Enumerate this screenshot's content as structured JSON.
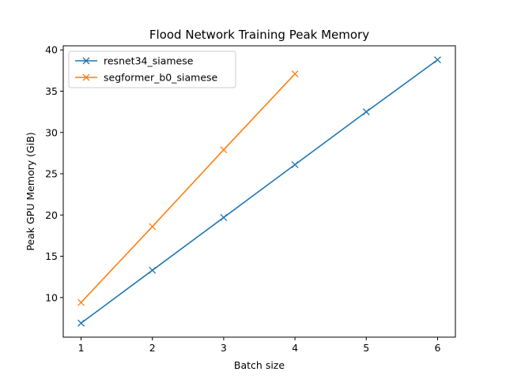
{
  "chart_data": {
    "type": "line",
    "title": "Flood Network Training Peak Memory",
    "xlabel": "Batch size",
    "ylabel": "Peak GPU Memory (GiB)",
    "xlim": [
      0.75,
      6.25
    ],
    "ylim": [
      5.2,
      40.5
    ],
    "xticks": [
      1,
      2,
      3,
      4,
      5,
      6
    ],
    "yticks": [
      10,
      15,
      20,
      25,
      30,
      35,
      40
    ],
    "grid": false,
    "legend_position": "top-left",
    "marker": "x",
    "series": [
      {
        "name": "resnet34_siamese",
        "color": "#1f77b4",
        "x": [
          1,
          2,
          3,
          4,
          5,
          6
        ],
        "y": [
          6.9,
          13.3,
          19.7,
          26.1,
          32.5,
          38.8
        ]
      },
      {
        "name": "segformer_b0_siamese",
        "color": "#ff7f0e",
        "x": [
          1,
          2,
          3,
          4
        ],
        "y": [
          9.4,
          18.6,
          27.9,
          37.1
        ]
      }
    ]
  }
}
